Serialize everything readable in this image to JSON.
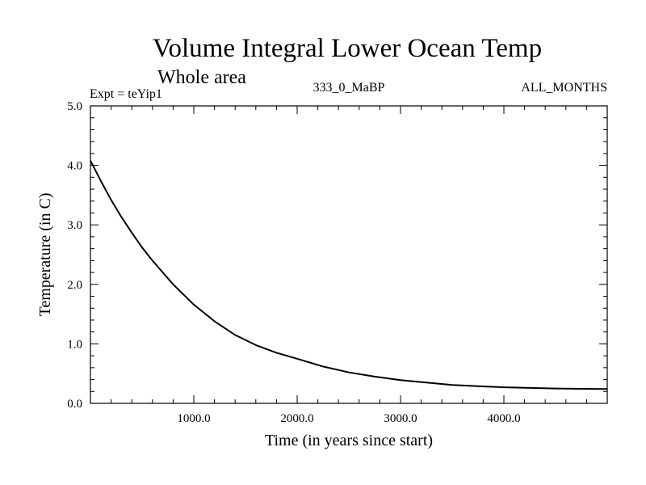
{
  "chart_data": {
    "type": "line",
    "title": "Volume Integral Lower Ocean Temp",
    "subtitle": "Whole area",
    "annotations": {
      "left": "Expt = teYip1",
      "center": "333_0_MaBP",
      "right": "ALL_MONTHS"
    },
    "xlabel": "Time (in years since start)",
    "ylabel": "Temperature (in C)",
    "xlim": [
      0,
      5000
    ],
    "ylim": [
      0,
      5
    ],
    "xticks": [
      1000,
      2000,
      3000,
      4000
    ],
    "xtick_labels": [
      "1000.0",
      "2000.0",
      "3000.0",
      "4000.0"
    ],
    "yticks": [
      0,
      1,
      2,
      3,
      4,
      5
    ],
    "ytick_labels": [
      "0.0",
      "1.0",
      "2.0",
      "3.0",
      "4.0",
      "5.0"
    ],
    "grid": false,
    "series": [
      {
        "name": "Temperature",
        "color": "#000000",
        "x": [
          0,
          100,
          200,
          300,
          400,
          500,
          600,
          800,
          1000,
          1200,
          1400,
          1600,
          1800,
          2000,
          2250,
          2500,
          2750,
          3000,
          3250,
          3500,
          3750,
          4000,
          4250,
          4500,
          4750,
          5000
        ],
        "y": [
          4.08,
          3.74,
          3.42,
          3.13,
          2.87,
          2.62,
          2.4,
          2.0,
          1.66,
          1.38,
          1.15,
          0.98,
          0.85,
          0.75,
          0.62,
          0.52,
          0.45,
          0.39,
          0.35,
          0.31,
          0.29,
          0.27,
          0.26,
          0.25,
          0.245,
          0.24
        ]
      }
    ]
  }
}
